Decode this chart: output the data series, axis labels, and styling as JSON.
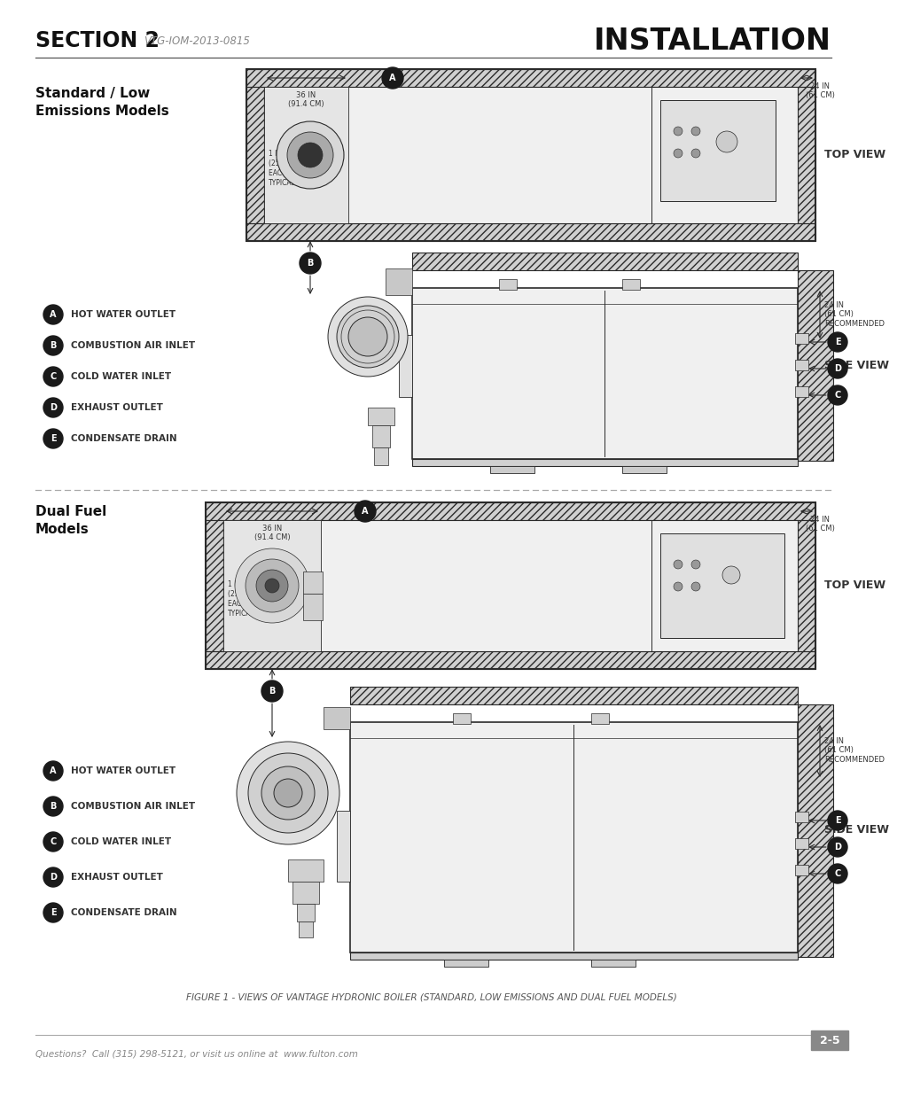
{
  "page_bg": "#ffffff",
  "header_section": "SECTION 2",
  "header_subtitle": "VTG-IOM-2013-0815",
  "header_title": "INSTALLATION",
  "footer_left": "Questions?  Call (315) 298-5121, or visit us online at  www.fulton.com",
  "footer_right": "2-5",
  "section1_label": "Standard / Low\nEmissions Models",
  "section2_label": "Dual Fuel\nModels",
  "top_view": "TOP VIEW",
  "side_view": "SIDE VIEW",
  "legend": [
    {
      "letter": "A",
      "desc": "HOT WATER OUTLET"
    },
    {
      "letter": "B",
      "desc": "COMBUSTION AIR INLET"
    },
    {
      "letter": "C",
      "desc": "COLD WATER INLET"
    },
    {
      "letter": "D",
      "desc": "EXHAUST OUTLET"
    },
    {
      "letter": "E",
      "desc": "CONDENSATE DRAIN"
    }
  ],
  "dim_36in": "36 IN\n(91.4 CM)",
  "dim_24in": "24 IN\n(61 CM)",
  "dim_1in": "1 IN\n(25.4 MM)\nEACH SIDE\nTYPICAL",
  "dim_24in_rec": "24 IN\n(61 CM)\nRECOMMENDED",
  "figure_caption": "FIGURE 1 - VIEWS OF VANTAGE HYDRONIC BOILER (STANDARD, LOW EMISSIONS AND DUAL FUEL MODELS)",
  "line_color": "#2a2a2a",
  "wall_fill": "#d0d0d0",
  "body_fill": "#f5f5f5",
  "circle_fill": "#1a1a1a",
  "text_color": "#333333",
  "gray_text": "#888888"
}
